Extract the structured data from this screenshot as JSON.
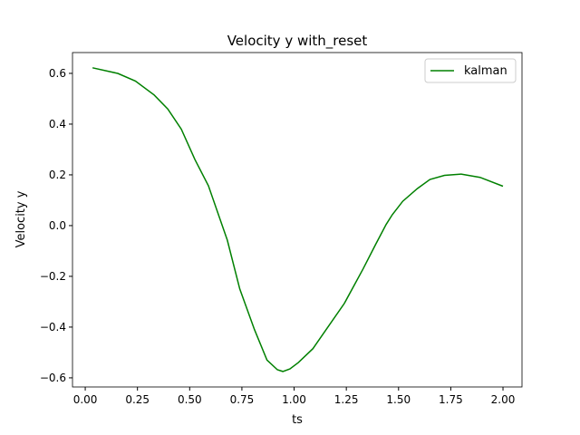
{
  "chart_data": {
    "type": "line",
    "title": "Velocity y with_reset",
    "xlabel": "ts",
    "ylabel": "Velocity y",
    "x": [
      0.035,
      0.156,
      0.24,
      0.33,
      0.395,
      0.46,
      0.525,
      0.59,
      0.68,
      0.74,
      0.81,
      0.87,
      0.92,
      0.946,
      0.98,
      1.02,
      1.09,
      1.15,
      1.24,
      1.33,
      1.39,
      1.44,
      1.47,
      1.52,
      1.59,
      1.65,
      1.72,
      1.8,
      1.89,
      2.0
    ],
    "series": [
      {
        "name": "kalman",
        "color": "#008000",
        "values": [
          0.622,
          0.6,
          0.57,
          0.515,
          0.46,
          0.38,
          0.26,
          0.157,
          -0.057,
          -0.25,
          -0.41,
          -0.53,
          -0.568,
          -0.575,
          -0.565,
          -0.54,
          -0.485,
          -0.414,
          -0.307,
          -0.171,
          -0.075,
          0.004,
          0.043,
          0.096,
          0.146,
          0.182,
          0.198,
          0.203,
          0.19,
          0.155
        ]
      }
    ],
    "xlim": [
      -0.061,
      2.091
    ],
    "ylim": [
      -0.636,
      0.682
    ],
    "xticks": [
      {
        "value": 0,
        "label": "0.00"
      },
      0.25,
      {
        "value": 0.5,
        "label": "0.50"
      },
      0.75,
      {
        "value": 1,
        "label": "1.00"
      },
      1.25,
      {
        "value": 1.5,
        "label": "1.50"
      },
      1.75,
      {
        "value": 2,
        "label": "2.00"
      }
    ],
    "yticks": [
      {
        "value": -0.6,
        "label": "−0.6"
      },
      {
        "value": -0.4,
        "label": "−0.4"
      },
      {
        "value": -0.2,
        "label": "−0.2"
      },
      {
        "value": 0,
        "label": "0.0"
      },
      0.2,
      0.4,
      0.6
    ],
    "legend": "upper right"
  }
}
